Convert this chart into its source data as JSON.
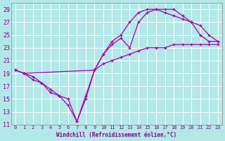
{
  "xlabel": "Windchill (Refroidissement éolien,°C)",
  "bg_color": "#b2e8e8",
  "grid_color": "#cceeee",
  "line_color": "#aa00aa",
  "xlim": [
    -0.5,
    23.5
  ],
  "ylim": [
    11,
    30
  ],
  "yticks": [
    11,
    13,
    15,
    17,
    19,
    21,
    23,
    25,
    27,
    29
  ],
  "xticks": [
    0,
    1,
    2,
    3,
    4,
    5,
    6,
    7,
    8,
    9,
    10,
    11,
    12,
    13,
    14,
    15,
    16,
    17,
    18,
    19,
    20,
    21,
    22,
    23
  ],
  "line1_x": [
    0,
    1,
    2,
    3,
    4,
    5,
    6,
    7,
    8,
    9,
    10,
    11,
    12,
    13,
    14,
    15,
    16,
    17,
    18,
    19,
    20,
    21,
    22,
    23
  ],
  "line1_y": [
    19.5,
    19.0,
    18.5,
    17.5,
    16.5,
    15.5,
    15.0,
    11.5,
    15.5,
    19.5,
    22.0,
    23.5,
    24.5,
    23.0,
    27.0,
    28.5,
    29.0,
    29.0,
    29.0,
    28.0,
    27.0,
    26.5,
    25.0,
    24.0
  ],
  "line2_x": [
    0,
    1,
    9,
    10,
    11,
    12,
    13,
    14,
    15,
    16,
    17,
    18,
    19,
    20,
    21,
    22,
    23
  ],
  "line2_y": [
    19.5,
    19.0,
    19.5,
    20.5,
    21.0,
    21.5,
    22.0,
    22.5,
    23.0,
    23.0,
    23.0,
    23.5,
    23.5,
    23.5,
    23.5,
    23.5,
    23.5
  ],
  "line3_x": [
    0,
    1,
    2,
    3,
    4,
    5,
    6,
    7,
    8,
    9,
    10,
    11,
    12,
    13,
    14,
    15,
    16,
    17,
    18,
    19,
    20,
    21,
    22,
    23
  ],
  "line3_y": [
    19.5,
    19.0,
    18.0,
    17.5,
    16.0,
    15.5,
    14.0,
    11.5,
    15.0,
    19.5,
    22.0,
    24.0,
    25.0,
    27.0,
    28.5,
    29.0,
    29.0,
    28.5,
    28.0,
    27.5,
    27.0,
    25.0,
    24.0,
    24.0
  ]
}
